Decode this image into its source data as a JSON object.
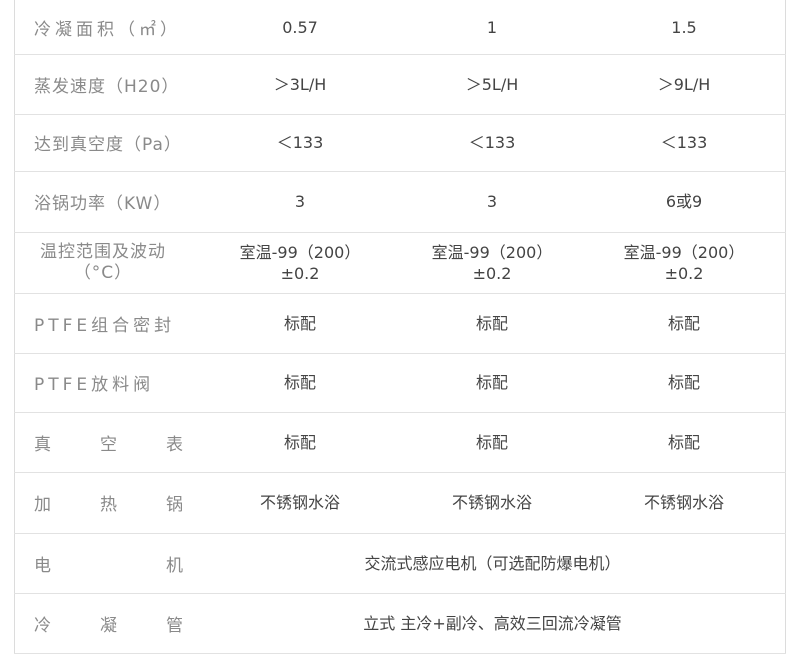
{
  "rows": [
    {
      "label": "冷凝面积（㎡）",
      "values": [
        "0.57",
        "1",
        "1.5"
      ]
    },
    {
      "label": "蒸发速度（H20）",
      "values": [
        "＞3L/H",
        "＞5L/H",
        "＞9L/H"
      ]
    },
    {
      "label": "达到真空度（Pa）",
      "values": [
        "＜133",
        "＜133",
        "＜133"
      ]
    },
    {
      "label": "浴锅功率（KW）",
      "values": [
        "3",
        "3",
        "6或9"
      ]
    },
    {
      "label": "温控范围及波动",
      "label2": "（°C）",
      "values": [
        "室温-99（200）",
        "室温-99（200）",
        "室温-99（200）"
      ],
      "values2": [
        "±0.2",
        "±0.2",
        "±0.2"
      ]
    },
    {
      "label": "PTFE组合密封",
      "values": [
        "标配",
        "标配",
        "标配"
      ]
    },
    {
      "label": "PTFE放料阀",
      "values": [
        "标配",
        "标配",
        "标配"
      ]
    },
    {
      "label_chars": [
        "真",
        "空",
        "表"
      ],
      "values": [
        "标配",
        "标配",
        "标配"
      ]
    },
    {
      "label_chars": [
        "加",
        "热",
        "锅"
      ],
      "values": [
        "不锈钢水浴",
        "不锈钢水浴",
        "不锈钢水浴"
      ]
    },
    {
      "label_chars": [
        "电",
        "机"
      ],
      "span": "交流式感应电机（可选配防爆电机）"
    },
    {
      "label_chars": [
        "冷",
        "凝",
        "管"
      ],
      "span": "立式  主冷+副冷、高效三回流冷凝管"
    }
  ]
}
